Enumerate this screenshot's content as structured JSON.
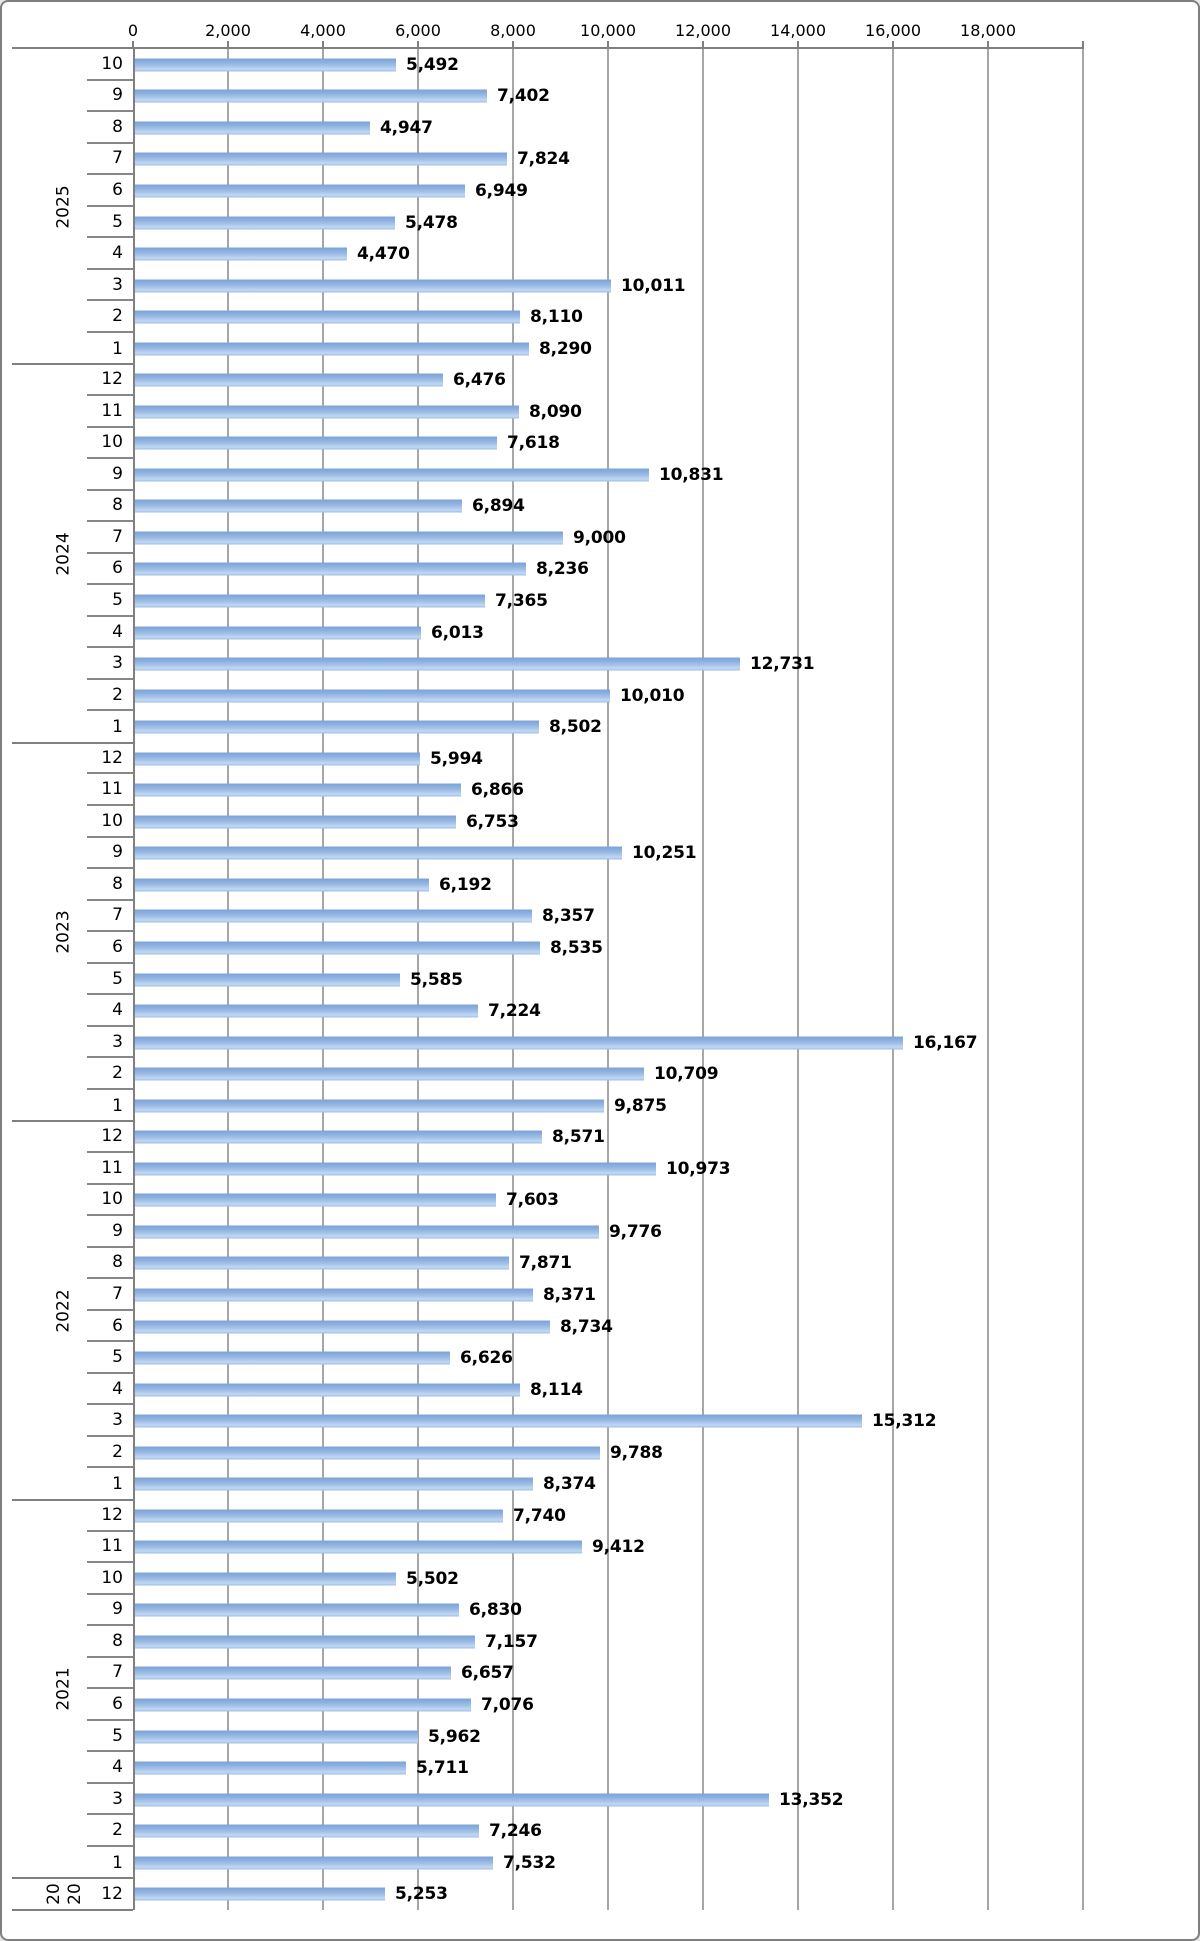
{
  "chart_data": {
    "type": "bar",
    "orientation": "horizontal",
    "title": "",
    "xlabel": "",
    "ylabel": "",
    "grid": true,
    "legend": false,
    "bar_color": "#8FB2E2",
    "gridline_color": "#A6A6A6",
    "axis_line_color": "#808080",
    "value_axis": {
      "position": "top",
      "min": 0,
      "max": 20000,
      "tick_step": 2000,
      "tick_labels": [
        "0",
        "2,000",
        "4,000",
        "6,000",
        "8,000",
        "10,000",
        "12,000",
        "14,000",
        "16,000",
        "18,000"
      ]
    },
    "category_axis": {
      "levels": [
        "year",
        "month"
      ],
      "order": "newest-first"
    },
    "groups": [
      {
        "year": "2025",
        "year_label_lines": [
          "2025"
        ],
        "rows": [
          {
            "month": "10",
            "value": 5492,
            "label": "5,492"
          },
          {
            "month": "9",
            "value": 7402,
            "label": "7,402"
          },
          {
            "month": "8",
            "value": 4947,
            "label": "4,947"
          },
          {
            "month": "7",
            "value": 7824,
            "label": "7,824"
          },
          {
            "month": "6",
            "value": 6949,
            "label": "6,949"
          },
          {
            "month": "5",
            "value": 5478,
            "label": "5,478"
          },
          {
            "month": "4",
            "value": 4470,
            "label": "4,470"
          },
          {
            "month": "3",
            "value": 10011,
            "label": "10,011"
          },
          {
            "month": "2",
            "value": 8110,
            "label": "8,110"
          },
          {
            "month": "1",
            "value": 8290,
            "label": "8,290"
          }
        ]
      },
      {
        "year": "2024",
        "year_label_lines": [
          "2024"
        ],
        "rows": [
          {
            "month": "12",
            "value": 6476,
            "label": "6,476"
          },
          {
            "month": "11",
            "value": 8090,
            "label": "8,090"
          },
          {
            "month": "10",
            "value": 7618,
            "label": "7,618"
          },
          {
            "month": "9",
            "value": 10831,
            "label": "10,831"
          },
          {
            "month": "8",
            "value": 6894,
            "label": "6,894"
          },
          {
            "month": "7",
            "value": 9000,
            "label": "9,000"
          },
          {
            "month": "6",
            "value": 8236,
            "label": "8,236"
          },
          {
            "month": "5",
            "value": 7365,
            "label": "7,365"
          },
          {
            "month": "4",
            "value": 6013,
            "label": "6,013"
          },
          {
            "month": "3",
            "value": 12731,
            "label": "12,731"
          },
          {
            "month": "2",
            "value": 10010,
            "label": "10,010"
          },
          {
            "month": "1",
            "value": 8502,
            "label": "8,502"
          }
        ]
      },
      {
        "year": "2023",
        "year_label_lines": [
          "2023"
        ],
        "rows": [
          {
            "month": "12",
            "value": 5994,
            "label": "5,994"
          },
          {
            "month": "11",
            "value": 6866,
            "label": "6,866"
          },
          {
            "month": "10",
            "value": 6753,
            "label": "6,753"
          },
          {
            "month": "9",
            "value": 10251,
            "label": "10,251"
          },
          {
            "month": "8",
            "value": 6192,
            "label": "6,192"
          },
          {
            "month": "7",
            "value": 8357,
            "label": "8,357"
          },
          {
            "month": "6",
            "value": 8535,
            "label": "8,535"
          },
          {
            "month": "5",
            "value": 5585,
            "label": "5,585"
          },
          {
            "month": "4",
            "value": 7224,
            "label": "7,224"
          },
          {
            "month": "3",
            "value": 16167,
            "label": "16,167"
          },
          {
            "month": "2",
            "value": 10709,
            "label": "10,709"
          },
          {
            "month": "1",
            "value": 9875,
            "label": "9,875"
          }
        ]
      },
      {
        "year": "2022",
        "year_label_lines": [
          "2022"
        ],
        "rows": [
          {
            "month": "12",
            "value": 8571,
            "label": "8,571"
          },
          {
            "month": "11",
            "value": 10973,
            "label": "10,973"
          },
          {
            "month": "10",
            "value": 7603,
            "label": "7,603"
          },
          {
            "month": "9",
            "value": 9776,
            "label": "9,776"
          },
          {
            "month": "8",
            "value": 7871,
            "label": "7,871"
          },
          {
            "month": "7",
            "value": 8371,
            "label": "8,371"
          },
          {
            "month": "6",
            "value": 8734,
            "label": "8,734"
          },
          {
            "month": "5",
            "value": 6626,
            "label": "6,626"
          },
          {
            "month": "4",
            "value": 8114,
            "label": "8,114"
          },
          {
            "month": "3",
            "value": 15312,
            "label": "15,312"
          },
          {
            "month": "2",
            "value": 9788,
            "label": "9,788"
          },
          {
            "month": "1",
            "value": 8374,
            "label": "8,374"
          }
        ]
      },
      {
        "year": "2021",
        "year_label_lines": [
          "2021"
        ],
        "rows": [
          {
            "month": "12",
            "value": 7740,
            "label": "7,740"
          },
          {
            "month": "11",
            "value": 9412,
            "label": "9,412"
          },
          {
            "month": "10",
            "value": 5502,
            "label": "5,502"
          },
          {
            "month": "9",
            "value": 6830,
            "label": "6,830"
          },
          {
            "month": "8",
            "value": 7157,
            "label": "7,157"
          },
          {
            "month": "7",
            "value": 6657,
            "label": "6,657"
          },
          {
            "month": "6",
            "value": 7076,
            "label": "7,076"
          },
          {
            "month": "5",
            "value": 5962,
            "label": "5,962"
          },
          {
            "month": "4",
            "value": 5711,
            "label": "5,711"
          },
          {
            "month": "3",
            "value": 13352,
            "label": "13,352"
          },
          {
            "month": "2",
            "value": 7246,
            "label": "7,246"
          },
          {
            "month": "1",
            "value": 7532,
            "label": "7,532"
          }
        ]
      },
      {
        "year": "2020",
        "year_label_lines": [
          "20",
          "20"
        ],
        "rows": [
          {
            "month": "12",
            "value": 5253,
            "label": "5,253"
          }
        ]
      }
    ]
  }
}
